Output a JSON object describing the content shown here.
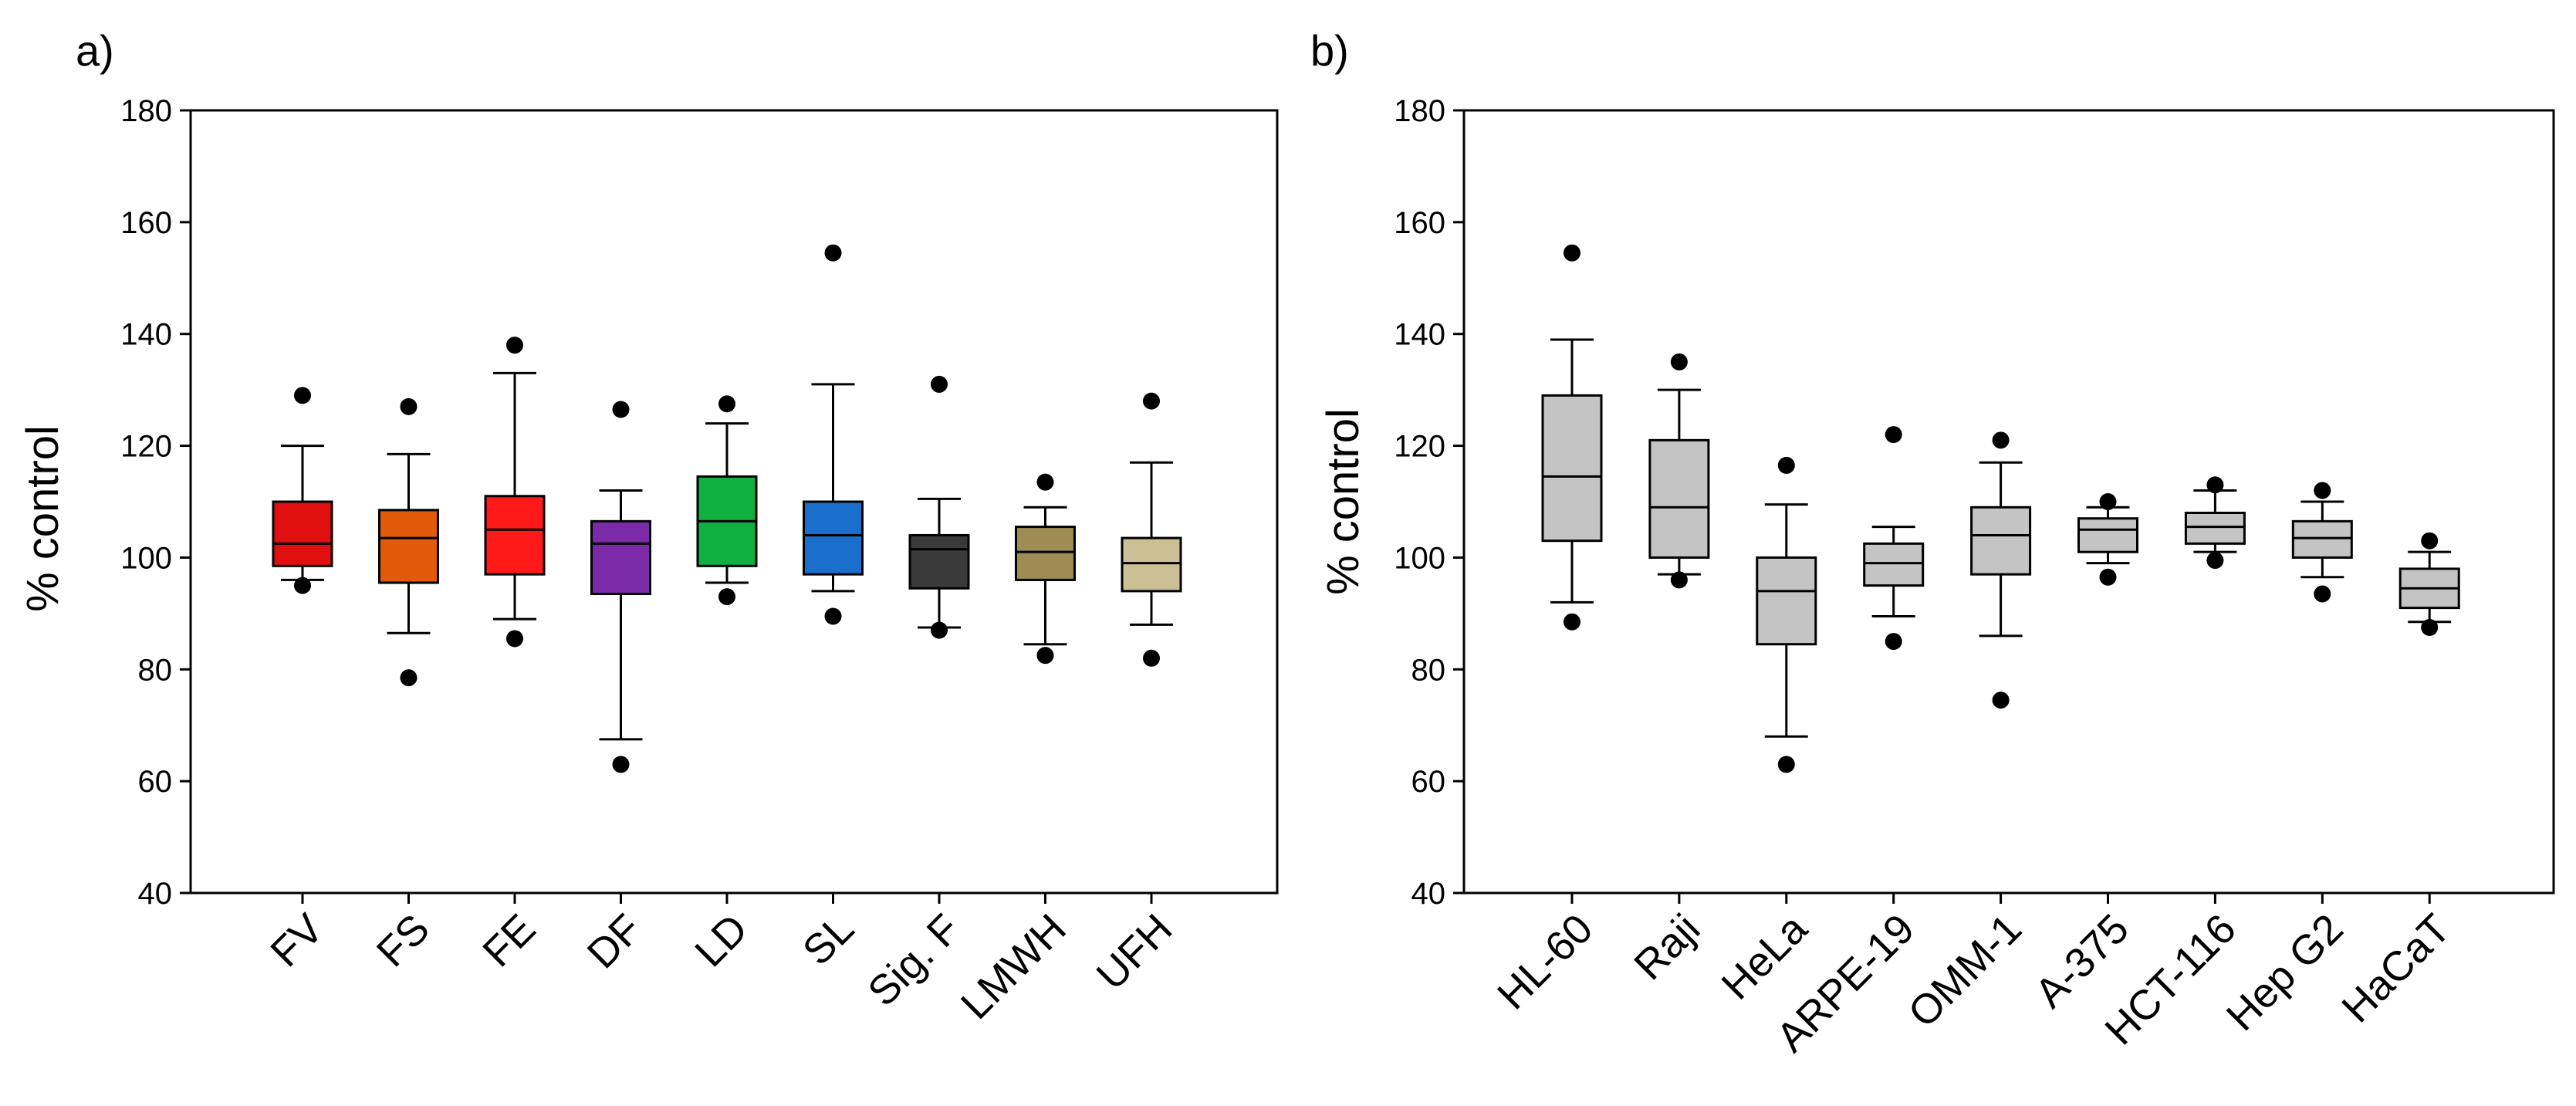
{
  "panels": [
    {
      "label": "a)",
      "chart_data": {
        "type": "box",
        "ylabel": "% control",
        "ylim": [
          40,
          180
        ],
        "yticks": [
          40,
          60,
          80,
          100,
          120,
          140,
          160,
          180
        ],
        "categories": [
          "FV",
          "FS",
          "FE",
          "DF",
          "LD",
          "SL",
          "Sig. F",
          "LMWH",
          "UFH"
        ],
        "colors": [
          "#e01010",
          "#e05a0a",
          "#ff1a1a",
          "#7b2aa8",
          "#10b040",
          "#1a6fcc",
          "#3a3a3a",
          "#9e8c55",
          "#cbbf95"
        ],
        "boxes": [
          {
            "whisker_low": 96,
            "q1": 98.5,
            "median": 102.5,
            "q3": 110,
            "whisker_high": 120,
            "outliers": [
              95,
              129
            ]
          },
          {
            "whisker_low": 86.5,
            "q1": 95.5,
            "median": 103.5,
            "q3": 108.5,
            "whisker_high": 118.5,
            "outliers": [
              78.5,
              127
            ]
          },
          {
            "whisker_low": 89,
            "q1": 97,
            "median": 105,
            "q3": 111,
            "whisker_high": 133,
            "outliers": [
              85.5,
              138
            ]
          },
          {
            "whisker_low": 67.5,
            "q1": 93.5,
            "median": 102.5,
            "q3": 106.5,
            "whisker_high": 112,
            "outliers": [
              63,
              126.5
            ]
          },
          {
            "whisker_low": 95.5,
            "q1": 98.5,
            "median": 106.5,
            "q3": 114.5,
            "whisker_high": 124,
            "outliers": [
              93,
              127.5
            ]
          },
          {
            "whisker_low": 94,
            "q1": 97,
            "median": 104,
            "q3": 110,
            "whisker_high": 131,
            "outliers": [
              89.5,
              154.5
            ]
          },
          {
            "whisker_low": 87.5,
            "q1": 94.5,
            "median": 101.5,
            "q3": 104,
            "whisker_high": 110.5,
            "outliers": [
              87,
              131
            ]
          },
          {
            "whisker_low": 84.5,
            "q1": 96,
            "median": 101,
            "q3": 105.5,
            "whisker_high": 109,
            "outliers": [
              82.5,
              113.5
            ]
          },
          {
            "whisker_low": 88,
            "q1": 94,
            "median": 99,
            "q3": 103.5,
            "whisker_high": 117,
            "outliers": [
              82,
              128
            ]
          }
        ]
      }
    },
    {
      "label": "b)",
      "chart_data": {
        "type": "box",
        "ylabel": "% control",
        "ylim": [
          40,
          180
        ],
        "yticks": [
          40,
          60,
          80,
          100,
          120,
          140,
          160,
          180
        ],
        "categories": [
          "HL-60",
          "Raji",
          "HeLa",
          "ARPE-19",
          "OMM-1",
          "A-375",
          "HCT-116",
          "Hep G2",
          "HaCaT"
        ],
        "colors": [
          "#c4c4c4",
          "#c4c4c4",
          "#c4c4c4",
          "#c4c4c4",
          "#c4c4c4",
          "#c4c4c4",
          "#c4c4c4",
          "#c4c4c4",
          "#c4c4c4"
        ],
        "boxes": [
          {
            "whisker_low": 92,
            "q1": 103,
            "median": 114.5,
            "q3": 129,
            "whisker_high": 139,
            "outliers": [
              88.5,
              154.5
            ]
          },
          {
            "whisker_low": 97,
            "q1": 100,
            "median": 109,
            "q3": 121,
            "whisker_high": 130,
            "outliers": [
              96,
              135
            ]
          },
          {
            "whisker_low": 68,
            "q1": 84.5,
            "median": 94,
            "q3": 100,
            "whisker_high": 109.5,
            "outliers": [
              63,
              116.5
            ]
          },
          {
            "whisker_low": 89.5,
            "q1": 95,
            "median": 99,
            "q3": 102.5,
            "whisker_high": 105.5,
            "outliers": [
              85,
              122
            ]
          },
          {
            "whisker_low": 86,
            "q1": 97,
            "median": 104,
            "q3": 109,
            "whisker_high": 117,
            "outliers": [
              74.5,
              121
            ]
          },
          {
            "whisker_low": 99,
            "q1": 101,
            "median": 105,
            "q3": 107,
            "whisker_high": 109,
            "outliers": [
              96.5,
              110
            ]
          },
          {
            "whisker_low": 101,
            "q1": 102.5,
            "median": 105.5,
            "q3": 108,
            "whisker_high": 112,
            "outliers": [
              99.5,
              113
            ]
          },
          {
            "whisker_low": 96.5,
            "q1": 100,
            "median": 103.5,
            "q3": 106.5,
            "whisker_high": 110,
            "outliers": [
              93.5,
              112
            ]
          },
          {
            "whisker_low": 88.5,
            "q1": 91,
            "median": 94.5,
            "q3": 98,
            "whisker_high": 101,
            "outliers": [
              87.5,
              103
            ]
          }
        ]
      }
    }
  ]
}
